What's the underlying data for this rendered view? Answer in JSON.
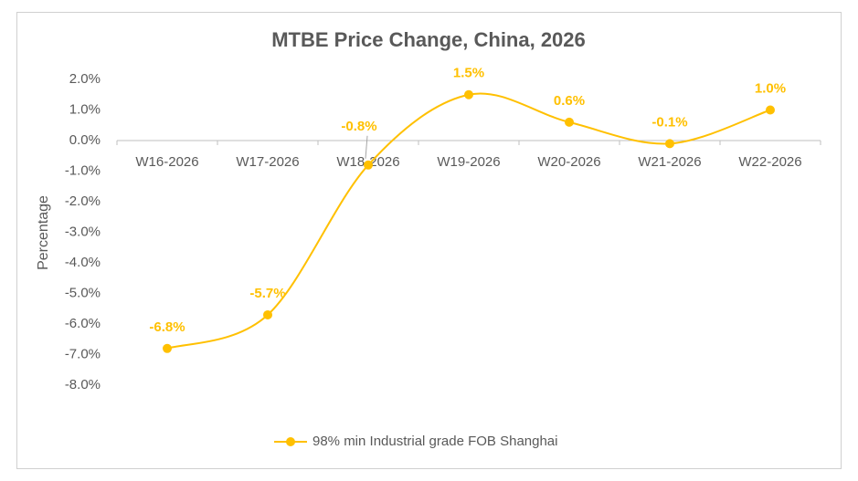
{
  "chart_data": {
    "type": "line",
    "title": "MTBE Price Change, China, 2026",
    "y_label": "Percentage",
    "categories": [
      "W16-2026",
      "W17-2026",
      "W18-2026",
      "W19-2026",
      "W20-2026",
      "W21-2026",
      "W22-2026"
    ],
    "series": [
      {
        "name": "98% min Industrial grade FOB Shanghai",
        "color": "#FFC000",
        "values": [
          -6.8,
          -5.7,
          -0.8,
          1.5,
          0.6,
          -0.1,
          1.0
        ],
        "value_labels": [
          "-6.8%",
          "-5.7%",
          "-0.8%",
          "1.5%",
          "0.6%",
          "-0.1%",
          "1.0%"
        ]
      }
    ],
    "ylim": [
      -8,
      2
    ],
    "yticks": [
      {
        "value": 2,
        "label": "2.0%"
      },
      {
        "value": 1,
        "label": "1.0%"
      },
      {
        "value": 0,
        "label": "0.0%"
      },
      {
        "value": -1,
        "label": "-1.0%"
      },
      {
        "value": -2,
        "label": "-2.0%"
      },
      {
        "value": -3,
        "label": "-3.0%"
      },
      {
        "value": -4,
        "label": "-4.0%"
      },
      {
        "value": -5,
        "label": "-5.0%"
      },
      {
        "value": -6,
        "label": "-6.0%"
      },
      {
        "value": -7,
        "label": "-7.0%"
      },
      {
        "value": -8,
        "label": "-8.0%"
      }
    ],
    "grid": false,
    "smooth": true,
    "legend": "bottom"
  }
}
